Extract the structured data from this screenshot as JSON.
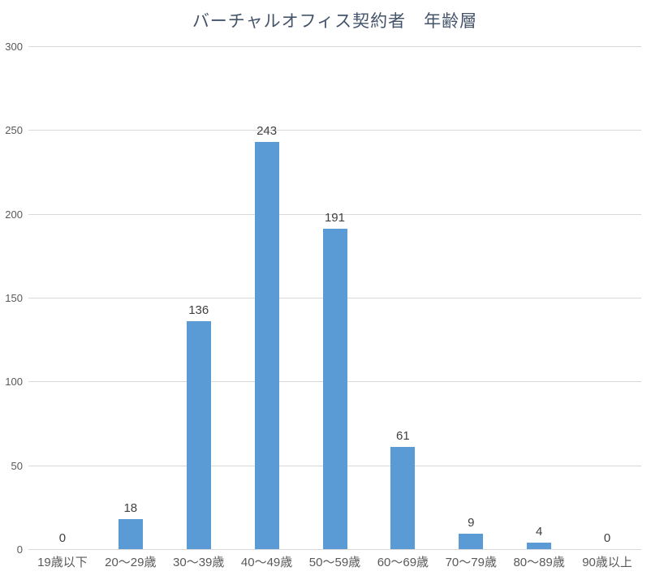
{
  "chart_data": {
    "type": "bar",
    "title": "バーチャルオフィス契約者　年齢層",
    "categories": [
      "19歳以下",
      "20～29歳",
      "30～39歳",
      "40～49歳",
      "50～59歳",
      "60～69歳",
      "70～79歳",
      "80～89歳",
      "90歳以上"
    ],
    "values": [
      0,
      18,
      136,
      243,
      191,
      61,
      9,
      4,
      0
    ],
    "data_labels": [
      "0",
      "18",
      "136",
      "243",
      "191",
      "61",
      "9",
      "4",
      "0"
    ],
    "y_tick_labels": [
      "0",
      "50",
      "100",
      "150",
      "200",
      "250",
      "300"
    ],
    "xlabel": "",
    "ylabel": "",
    "ylim": [
      0,
      300
    ],
    "ytick_step": 50,
    "grid": true,
    "legend": false,
    "colors": {
      "bar": "#5B9BD5",
      "title": "#44546A",
      "axis_text": "#595959",
      "data_label": "#404040",
      "gridline": "#D9D9D9",
      "background": "#FFFFFF"
    }
  }
}
